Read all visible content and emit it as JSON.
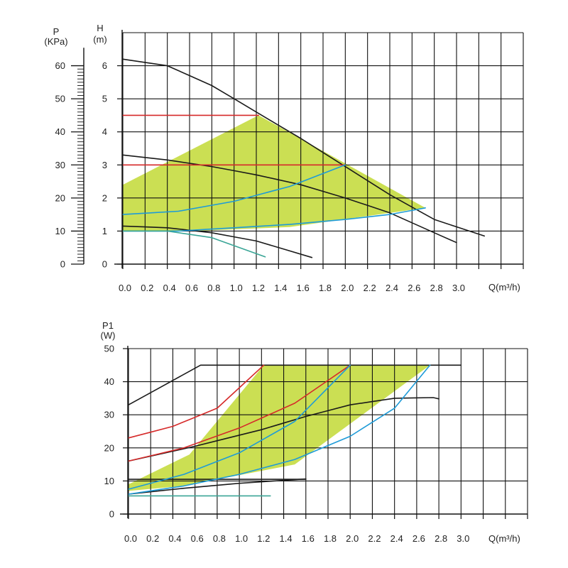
{
  "chart_data": [
    {
      "type": "line",
      "id": "head",
      "ylabel_left": "P",
      "ylabel_left_unit": "(KPa)",
      "ylabel": "H",
      "ylabel_unit": "(m)",
      "xlabel": "Q(m³/h)",
      "x_ticks": [
        "0.0",
        "0.2",
        "0.4",
        "0.6",
        "0.8",
        "1.0",
        "1.2",
        "1.4",
        "1.6",
        "1.8",
        "2.0",
        "2.2",
        "2.4",
        "2.6",
        "2.8",
        "3.0"
      ],
      "y_ticks": [
        "0",
        "1",
        "2",
        "3",
        "4",
        "5",
        "6"
      ],
      "p_ticks": [
        "0",
        "10",
        "20",
        "30",
        "40",
        "50",
        "60"
      ],
      "xlim": [
        0,
        3.6
      ],
      "ylim": [
        0,
        7
      ],
      "plim": [
        0,
        70
      ],
      "grid": true,
      "colors": {
        "black": "#1a1a1a",
        "red": "#d62a2a",
        "blue": "#1e9bd8",
        "teal": "#3aa596",
        "fill": "#c2d935"
      },
      "operating_region": [
        [
          0,
          2.4
        ],
        [
          1.22,
          4.5
        ],
        [
          2.72,
          1.7
        ],
        [
          1.5,
          1.12
        ],
        [
          0.65,
          1.0
        ],
        [
          0,
          1.0
        ]
      ],
      "series": [
        {
          "color": "black",
          "points": [
            [
              0,
              6.2
            ],
            [
              0.4,
              6.0
            ],
            [
              0.8,
              5.4
            ],
            [
              1.2,
              4.6
            ],
            [
              1.6,
              3.8
            ],
            [
              2.0,
              2.95
            ],
            [
              2.4,
              2.1
            ],
            [
              2.8,
              1.35
            ],
            [
              3.25,
              0.85
            ]
          ]
        },
        {
          "color": "black",
          "points": [
            [
              0,
              3.3
            ],
            [
              0.4,
              3.15
            ],
            [
              0.8,
              2.95
            ],
            [
              1.2,
              2.7
            ],
            [
              1.6,
              2.4
            ],
            [
              2.0,
              2.0
            ],
            [
              2.4,
              1.55
            ],
            [
              2.7,
              1.1
            ],
            [
              3.0,
              0.65
            ]
          ]
        },
        {
          "color": "black",
          "points": [
            [
              0,
              1.15
            ],
            [
              0.4,
              1.1
            ],
            [
              0.8,
              0.95
            ],
            [
              1.2,
              0.7
            ],
            [
              1.7,
              0.2
            ]
          ]
        },
        {
          "color": "red",
          "points": [
            [
              0,
              4.5
            ],
            [
              1.22,
              4.5
            ]
          ]
        },
        {
          "color": "red",
          "points": [
            [
              0,
              3.0
            ],
            [
              2.0,
              3.0
            ]
          ]
        },
        {
          "color": "blue",
          "points": [
            [
              0,
              1.5
            ],
            [
              0.5,
              1.6
            ],
            [
              1.0,
              1.9
            ],
            [
              1.5,
              2.35
            ],
            [
              2.0,
              3.0
            ]
          ]
        },
        {
          "color": "blue",
          "points": [
            [
              0,
              1.0
            ],
            [
              0.5,
              1.0
            ],
            [
              1.0,
              1.1
            ],
            [
              1.5,
              1.2
            ],
            [
              2.0,
              1.35
            ],
            [
              2.4,
              1.5
            ],
            [
              2.72,
              1.7
            ]
          ]
        },
        {
          "color": "teal",
          "points": [
            [
              0,
              1.0
            ],
            [
              0.4,
              1.0
            ],
            [
              0.8,
              0.8
            ],
            [
              1.28,
              0.22
            ]
          ]
        }
      ]
    },
    {
      "type": "line",
      "id": "power",
      "ylabel": "P1",
      "ylabel_unit": "(W)",
      "xlabel": "Q(m³/h)",
      "x_ticks": [
        "0.0",
        "0.2",
        "0.4",
        "0.6",
        "0.8",
        "1.0",
        "1.2",
        "1.4",
        "1.6",
        "1.8",
        "2.0",
        "2.2",
        "2.4",
        "2.6",
        "2.8",
        "3.0"
      ],
      "y_ticks": [
        "0",
        "10",
        "20",
        "30",
        "40",
        "50"
      ],
      "xlim": [
        0,
        3.6
      ],
      "ylim": [
        0,
        50
      ],
      "grid": true,
      "colors": {
        "black": "#1a1a1a",
        "red": "#d62a2a",
        "blue": "#1e9bd8",
        "teal": "#3aa596",
        "fill": "#c2d935"
      },
      "operating_region": [
        [
          0,
          9
        ],
        [
          0.55,
          18
        ],
        [
          1.22,
          45
        ],
        [
          2.72,
          45
        ],
        [
          1.5,
          15
        ],
        [
          0.5,
          8.5
        ],
        [
          0,
          7
        ]
      ],
      "series": [
        {
          "color": "black",
          "points": [
            [
              0,
              33
            ],
            [
              0.65,
              45
            ],
            [
              3.0,
              45
            ]
          ]
        },
        {
          "color": "black",
          "points": [
            [
              0,
              16
            ],
            [
              0.6,
              20.5
            ],
            [
              1.2,
              25.5
            ],
            [
              1.6,
              29.5
            ],
            [
              2.0,
              33
            ],
            [
              2.4,
              35
            ],
            [
              2.75,
              35.2
            ],
            [
              2.8,
              34.8
            ]
          ]
        },
        {
          "color": "black",
          "points": [
            [
              0,
              6
            ],
            [
              0.5,
              7.8
            ],
            [
              1.0,
              9.3
            ],
            [
              1.6,
              10.6
            ]
          ]
        },
        {
          "color": "black",
          "points": [
            [
              0,
              10.5
            ],
            [
              0.5,
              10.5
            ],
            [
              1.0,
              10.5
            ],
            [
              1.6,
              10.5
            ]
          ]
        },
        {
          "color": "red",
          "points": [
            [
              0,
              23
            ],
            [
              0.4,
              26.5
            ],
            [
              0.8,
              32
            ],
            [
              1.22,
              45
            ]
          ]
        },
        {
          "color": "red",
          "points": [
            [
              0,
              16
            ],
            [
              0.5,
              20
            ],
            [
              1.0,
              26
            ],
            [
              1.5,
              33.5
            ],
            [
              2.0,
              45
            ]
          ]
        },
        {
          "color": "blue",
          "points": [
            [
              0,
              7.5
            ],
            [
              0.5,
              12
            ],
            [
              1.0,
              18.5
            ],
            [
              1.5,
              28
            ],
            [
              2.0,
              45
            ]
          ]
        },
        {
          "color": "blue",
          "points": [
            [
              0,
              6
            ],
            [
              0.5,
              8.5
            ],
            [
              1.0,
              12
            ],
            [
              1.5,
              16.5
            ],
            [
              2.0,
              23.5
            ],
            [
              2.4,
              32
            ],
            [
              2.72,
              45
            ]
          ]
        },
        {
          "color": "teal",
          "points": [
            [
              0,
              5.5
            ],
            [
              1.28,
              5.5
            ]
          ]
        }
      ]
    }
  ]
}
